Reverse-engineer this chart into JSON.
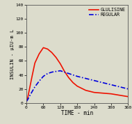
{
  "title": "",
  "xlabel": "TIME - min",
  "ylabel": "INSULIN - μIU·m L",
  "xlim": [
    0,
    360
  ],
  "ylim": [
    0,
    140
  ],
  "xticks": [
    0,
    60,
    120,
    180,
    240,
    300,
    360
  ],
  "yticks": [
    0,
    20,
    40,
    60,
    80,
    100,
    120,
    140
  ],
  "glulisine_x": [
    0,
    5,
    10,
    20,
    30,
    45,
    60,
    75,
    90,
    105,
    120,
    135,
    150,
    165,
    180,
    210,
    240,
    270,
    300,
    330,
    360
  ],
  "glulisine_y": [
    2,
    8,
    18,
    38,
    57,
    70,
    79,
    77,
    72,
    65,
    56,
    45,
    36,
    29,
    24,
    18,
    15,
    14,
    13,
    11,
    9
  ],
  "regular_x": [
    0,
    5,
    10,
    20,
    30,
    45,
    60,
    75,
    90,
    105,
    120,
    135,
    150,
    165,
    180,
    210,
    240,
    270,
    300,
    330,
    360
  ],
  "regular_y": [
    2,
    5,
    9,
    16,
    23,
    31,
    38,
    42,
    44,
    45,
    46,
    44,
    42,
    40,
    38,
    35,
    32,
    29,
    26,
    23,
    20
  ],
  "glulisine_color": "#ee1100",
  "regular_color": "#0000dd",
  "legend_glulisine": "GLULISINE",
  "legend_regular": "REGULAR",
  "bg_color": "#dcdccc",
  "plot_bg": "#dcdccc",
  "font_family": "monospace"
}
